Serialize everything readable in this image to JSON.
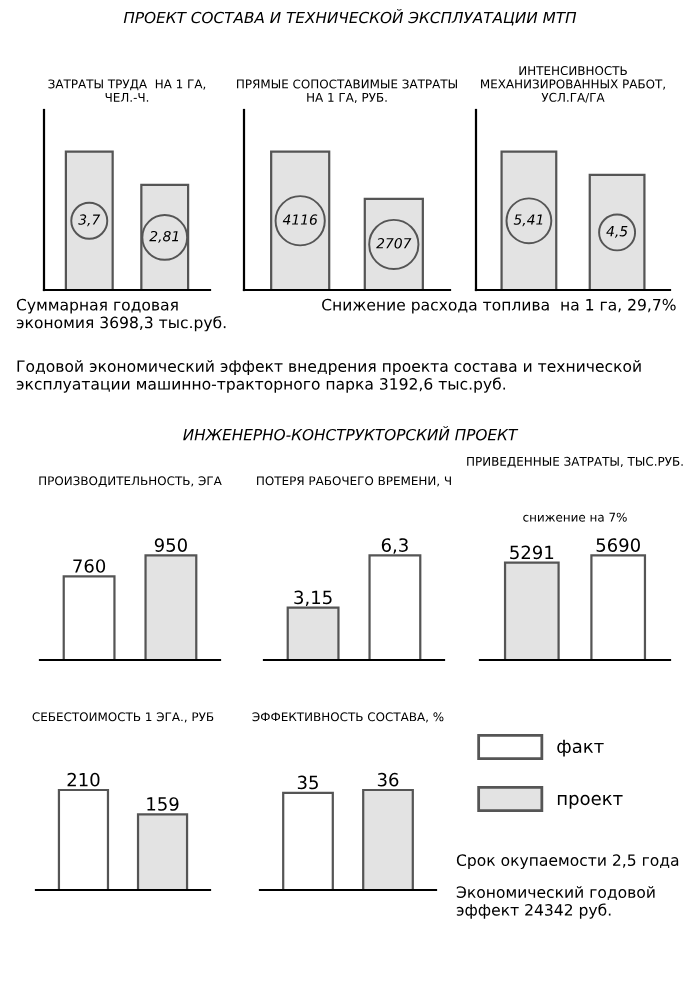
{
  "chart_data": [
    {
      "type": "other",
      "title": "ПРОЕКТ СОСТАВА И ТЕХНИЧЕСКОЙ ЭКСПЛУАТАЦИИ МТП"
    },
    {
      "type": "bar",
      "title": "ЗАТРАТЫ ТРУДА  НА 1 ГА,\nЧЕЛ.-Ч.",
      "categories": [
        null,
        null
      ],
      "values": [
        3.7,
        2.81
      ],
      "value_labels": [
        "3,7",
        "2,81"
      ],
      "color": "#e3e3e3"
    },
    {
      "type": "bar",
      "title": "ПРЯМЫЕ СОПОСТАВИМЫЕ ЗАТРАТЫ\nНА 1 ГА, РУБ.",
      "categories": [
        null,
        null
      ],
      "values": [
        4116,
        2707
      ],
      "value_labels": [
        "4116",
        "2707"
      ],
      "color": "#e3e3e3"
    },
    {
      "type": "bar",
      "title": "ИНТЕНСИВНОСТЬ\nМЕХАНИЗИРОВАННЫХ РАБОТ,\nУСЛ.ГА/ГА",
      "categories": [
        null,
        null
      ],
      "values": [
        5.41,
        4.5
      ],
      "value_labels": [
        "5,41",
        "4,5"
      ],
      "color": "#e3e3e3"
    },
    {
      "type": "other",
      "annotations": [
        "Суммарная годовая\nэкономия 3698,3 тыс.руб.",
        "Снижение расхода топлива  на 1 га, 29,7%",
        "Годовой экономический эффект внедрения проекта состава и технической\nэксплуатации машинно-тракторного парка 3192,6 тыс.руб."
      ]
    },
    {
      "type": "other",
      "title": "ИНЖЕНЕРНО-КОНСТРУКТОРСКИЙ ПРОЕКТ"
    },
    {
      "type": "bar",
      "title": "ПРОИЗВОДИТЕЛЬНОСТЬ, ЭГА",
      "categories": [
        null,
        null
      ],
      "values": [
        760,
        950
      ],
      "value_labels": [
        "760",
        "950"
      ],
      "colors": [
        "#ffffff",
        "#e3e3e3"
      ]
    },
    {
      "type": "bar",
      "title": "ПОТЕРЯ РАБОЧЕГО ВРЕМЕНИ, Ч",
      "categories": [
        null,
        null
      ],
      "values": [
        3.15,
        6.3
      ],
      "value_labels": [
        "3,15",
        "6,3"
      ],
      "colors": [
        "#e3e3e3",
        "#ffffff"
      ]
    },
    {
      "type": "bar",
      "title": "ПРИВЕДЕННЫЕ ЗАТРАТЫ, ТЫС.РУБ.",
      "subtitle": "снижение на 7%",
      "categories": [
        null,
        null
      ],
      "values": [
        5291,
        5690
      ],
      "value_labels": [
        "5291",
        "5690"
      ],
      "colors": [
        "#e3e3e3",
        "#ffffff"
      ]
    },
    {
      "type": "bar",
      "title": "СЕБЕСТОИМОСТЬ 1 ЭГА., РУБ",
      "categories": [
        null,
        null
      ],
      "values": [
        210,
        159
      ],
      "value_labels": [
        "210",
        "159"
      ],
      "colors": [
        "#ffffff",
        "#e3e3e3"
      ]
    },
    {
      "type": "bar",
      "title": "ЭФФЕКТИВНОСТЬ СОСТАВА, %",
      "categories": [
        null,
        null
      ],
      "legend": "right",
      "series": [
        {
          "name": "факт",
          "color": "#ffffff",
          "values": [
            35,
            null
          ],
          "value_labels": [
            "35",
            null
          ]
        },
        {
          "name": "проект",
          "color": "#e3e3e3",
          "values": [
            null,
            36
          ],
          "value_labels": [
            null,
            "36"
          ]
        }
      ]
    },
    {
      "type": "other",
      "annotations": [
        "Срок окупаемости 2,5 года",
        "Экономический годовой\nэффект 24342 руб."
      ]
    }
  ]
}
